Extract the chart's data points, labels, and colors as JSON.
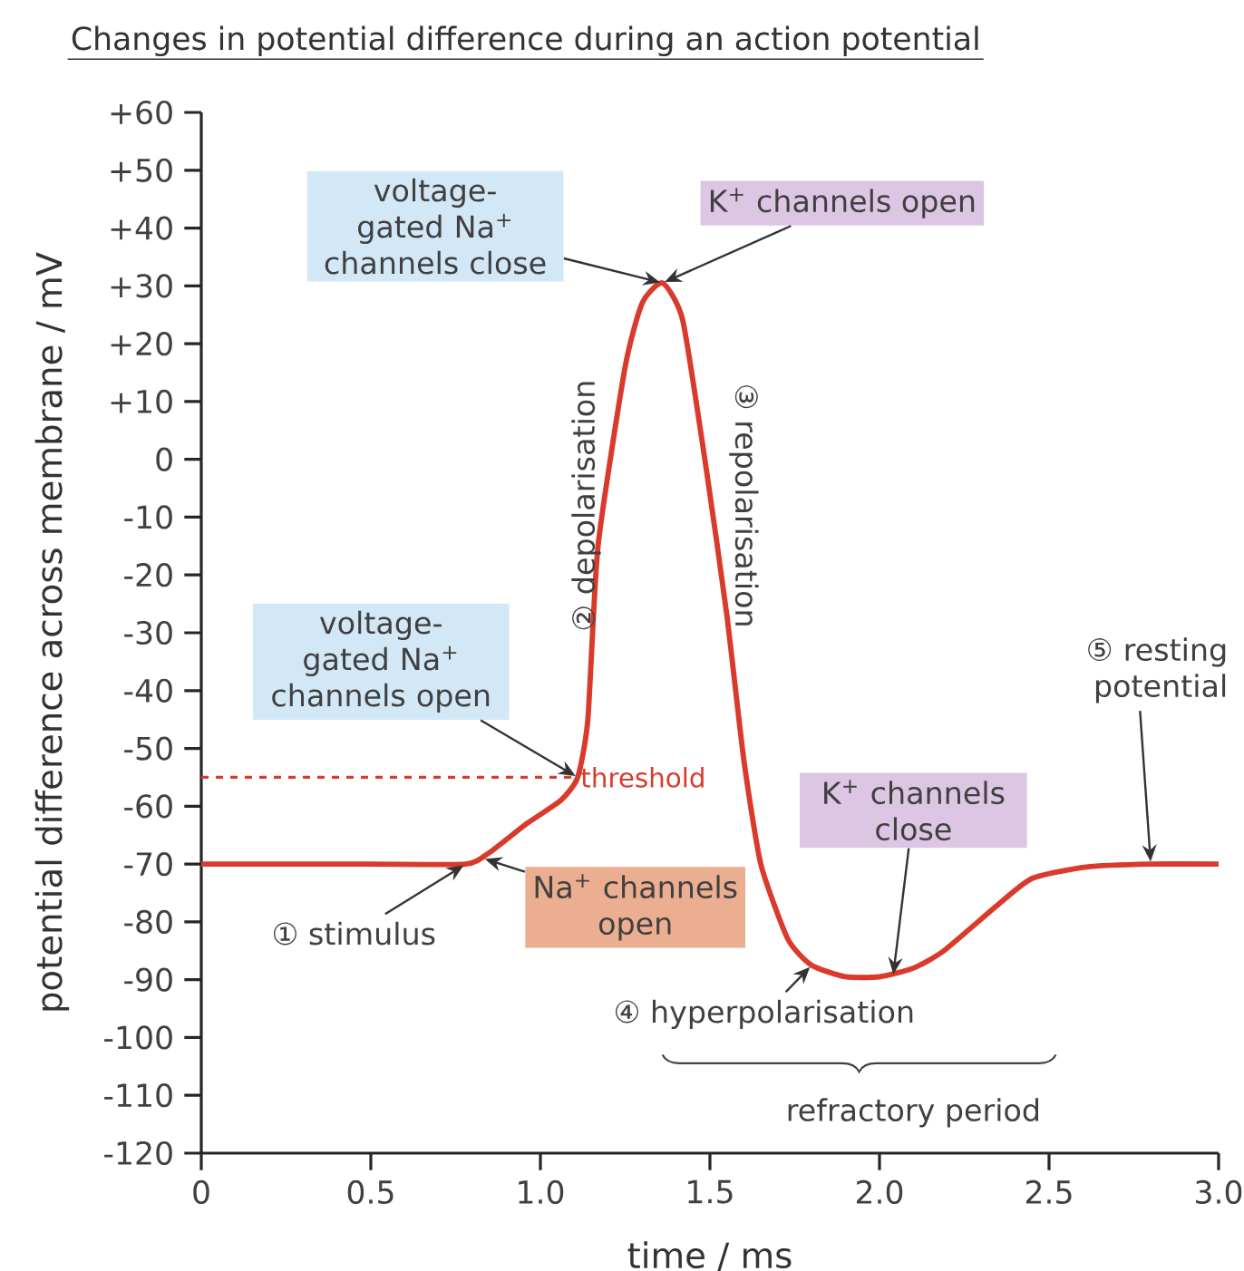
{
  "chart_data": {
    "type": "line",
    "title": "Changes in potential difference during an action potential",
    "xlabel": "time / ms",
    "ylabel": "potential difference across membrane / mV",
    "xlim": [
      0,
      3
    ],
    "ylim": [
      -120,
      60
    ],
    "xticks": [
      0,
      0.5,
      {
        "value": 1,
        "label": "1.0"
      },
      1.5,
      {
        "value": 2,
        "label": "2.0"
      },
      2.5,
      {
        "value": 3,
        "label": "3.0"
      }
    ],
    "yticks": [
      {
        "value": 60,
        "label": "+60"
      },
      {
        "value": 50,
        "label": "+50"
      },
      {
        "value": 40,
        "label": "+40"
      },
      {
        "value": 30,
        "label": "+30"
      },
      {
        "value": 20,
        "label": "+20"
      },
      {
        "value": 10,
        "label": "+10"
      },
      0,
      -10,
      -20,
      -30,
      -40,
      -50,
      -60,
      -70,
      -80,
      -90,
      -100,
      -110,
      -120
    ],
    "x": [
      0,
      0.5,
      0.78,
      0.85,
      0.96,
      1.06,
      1.11,
      1.14,
      1.17,
      1.25,
      1.3,
      1.36,
      1.42,
      1.49,
      1.55,
      1.6,
      1.65,
      1.73,
      1.8,
      1.9,
      2.0,
      2.1,
      2.19,
      2.35,
      2.45,
      2.61,
      2.8,
      3.0
    ],
    "values": [
      -70,
      -70,
      -70,
      -68,
      -63,
      -59,
      -55,
      -45,
      -15,
      16,
      27,
      30.5,
      24,
      -2,
      -27,
      -52,
      -70,
      -83,
      -87.5,
      -89.5,
      -89.5,
      -88,
      -85,
      -77,
      -72.5,
      -70.5,
      -70,
      -70
    ],
    "color": "#d93a2b",
    "marker": "none",
    "line_style": "solid",
    "ref_lines": [
      {
        "axis": "y",
        "value": -55,
        "label": "threshold",
        "color": "#d93a2b",
        "line_style": "dashed"
      }
    ],
    "annotations": [
      {
        "text": "voltage-gated Na$^{+}$ channels close",
        "x": 1.36,
        "y": 30.5
      },
      {
        "text": "K$^{+}$ channels open",
        "x": 1.36,
        "y": 30.5
      },
      "② depolarisation",
      "③ repolarisation",
      {
        "text": "voltage-gated Na$^{+}$ channels open",
        "x": 1.11,
        "y": -55
      },
      {
        "text": "① stimulus",
        "x": 0.78,
        "y": -70
      },
      {
        "text": "Na$^{+}$ channels open",
        "x": 0.83,
        "y": -69
      },
      {
        "text": "K$^{+}$ channels close",
        "x": 2.04,
        "y": -89.5
      },
      {
        "text": "④ hyperpolarisation",
        "x": 1.8,
        "y": -87.5
      },
      {
        "text": "⑤ resting potential",
        "x": 2.8,
        "y": -70
      },
      "refractory period"
    ]
  }
}
